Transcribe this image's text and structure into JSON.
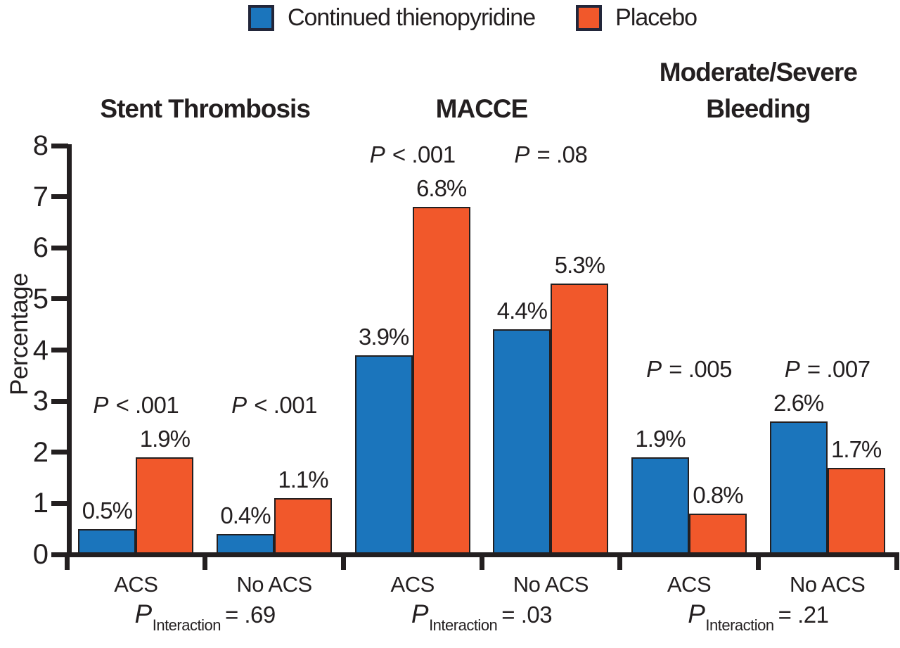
{
  "figure": {
    "background": "#ffffff",
    "text_color": "#231f20"
  },
  "legend": {
    "items": [
      {
        "label": "Continued thienopyridine",
        "color": "#1b75bc"
      },
      {
        "label": "Placebo",
        "color": "#f1582b"
      }
    ]
  },
  "chart_data": {
    "type": "bar",
    "title": "",
    "xlabel": "",
    "ylabel": "Percentage",
    "ylim": [
      0,
      8
    ],
    "yticks": [
      0,
      1,
      2,
      3,
      4,
      5,
      6,
      7,
      8
    ],
    "grid": false,
    "legend_position": "top-center",
    "series": [
      {
        "name": "Continued thienopyridine",
        "color": "#1b75bc"
      },
      {
        "name": "Placebo",
        "color": "#f1582b"
      }
    ],
    "groups": [
      {
        "title_lines": [
          "Stent Thrombosis"
        ],
        "p_interaction": {
          "symbol": "P",
          "subscript": "Interaction",
          "value": "= .69"
        },
        "pairs": [
          {
            "category": "ACS",
            "p": {
              "symbol": "P",
              "value": "< .001"
            },
            "values": [
              0.5,
              1.9
            ],
            "value_labels": [
              "0.5%",
              "1.9%"
            ]
          },
          {
            "category": "No ACS",
            "p": {
              "symbol": "P",
              "value": "< .001"
            },
            "values": [
              0.4,
              1.1
            ],
            "value_labels": [
              "0.4%",
              "1.1%"
            ]
          }
        ]
      },
      {
        "title_lines": [
          "MACCE"
        ],
        "p_interaction": {
          "symbol": "P",
          "subscript": "Interaction",
          "value": "= .03"
        },
        "pairs": [
          {
            "category": "ACS",
            "p": {
              "symbol": "P",
              "value": "< .001"
            },
            "values": [
              3.9,
              6.8
            ],
            "value_labels": [
              "3.9%",
              "6.8%"
            ]
          },
          {
            "category": "No ACS",
            "p": {
              "symbol": "P",
              "value": "= .08"
            },
            "values": [
              4.4,
              5.3
            ],
            "value_labels": [
              "4.4%",
              "5.3%"
            ]
          }
        ]
      },
      {
        "title_lines": [
          "Moderate/Severe",
          "Bleeding"
        ],
        "p_interaction": {
          "symbol": "P",
          "subscript": "Interaction",
          "value": "= .21"
        },
        "pairs": [
          {
            "category": "ACS",
            "p": {
              "symbol": "P",
              "value": "= .005"
            },
            "values": [
              1.9,
              0.8
            ],
            "value_labels": [
              "1.9%",
              "0.8%"
            ]
          },
          {
            "category": "No ACS",
            "p": {
              "symbol": "P",
              "value": "= .007"
            },
            "values": [
              2.6,
              1.7
            ],
            "value_labels": [
              "2.6%",
              "1.7%"
            ]
          }
        ]
      }
    ]
  }
}
